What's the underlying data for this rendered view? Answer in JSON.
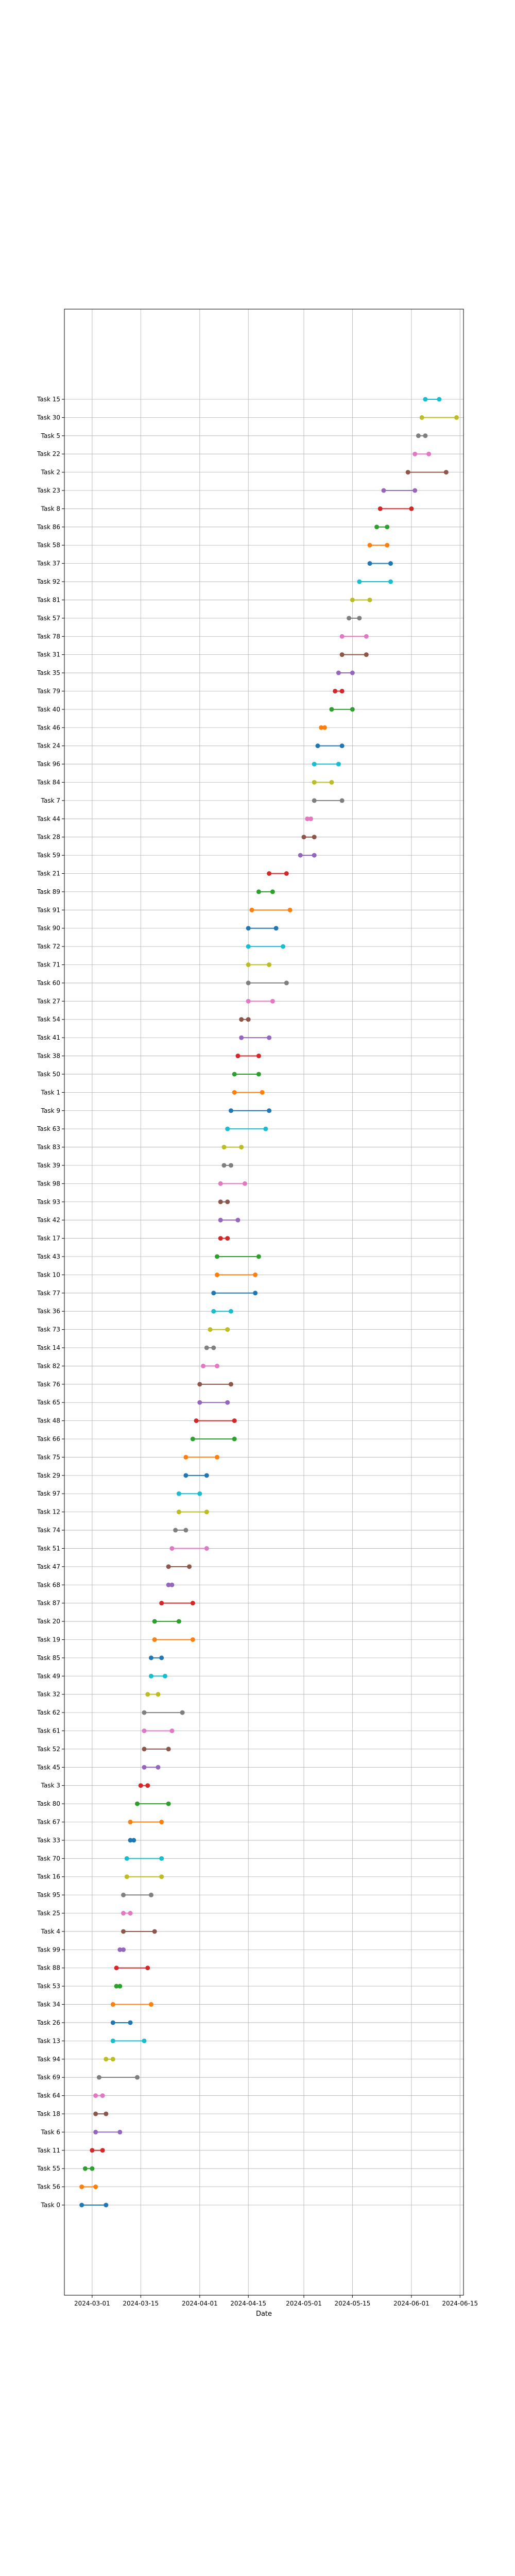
{
  "chart_data": {
    "type": "dumbbell",
    "title": "",
    "xlabel": "Date",
    "ylabel": "",
    "grid": true,
    "x_ticks": [
      "2024-03-01",
      "2024-03-15",
      "2024-04-01",
      "2024-04-15",
      "2024-05-01",
      "2024-05-15",
      "2024-06-01",
      "2024-06-15"
    ],
    "xlim": [
      "2024-02-22",
      "2024-06-16"
    ],
    "series_colors": [
      "#1f77b4",
      "#ff7f0e",
      "#2ca02c",
      "#d62728",
      "#9467bd",
      "#8c564b",
      "#e377c2",
      "#7f7f7f",
      "#bcbd22",
      "#17becf"
    ],
    "tasks": [
      {
        "label": "Task 0",
        "start": "2024-02-27",
        "end": "2024-03-05"
      },
      {
        "label": "Task 56",
        "start": "2024-02-27",
        "end": "2024-03-02"
      },
      {
        "label": "Task 55",
        "start": "2024-02-28",
        "end": "2024-03-01"
      },
      {
        "label": "Task 11",
        "start": "2024-03-01",
        "end": "2024-03-04"
      },
      {
        "label": "Task 6",
        "start": "2024-03-02",
        "end": "2024-03-09"
      },
      {
        "label": "Task 18",
        "start": "2024-03-02",
        "end": "2024-03-05"
      },
      {
        "label": "Task 64",
        "start": "2024-03-02",
        "end": "2024-03-04"
      },
      {
        "label": "Task 69",
        "start": "2024-03-03",
        "end": "2024-03-14"
      },
      {
        "label": "Task 94",
        "start": "2024-03-05",
        "end": "2024-03-07"
      },
      {
        "label": "Task 13",
        "start": "2024-03-07",
        "end": "2024-03-16"
      },
      {
        "label": "Task 26",
        "start": "2024-03-07",
        "end": "2024-03-12"
      },
      {
        "label": "Task 34",
        "start": "2024-03-07",
        "end": "2024-03-18"
      },
      {
        "label": "Task 53",
        "start": "2024-03-08",
        "end": "2024-03-09"
      },
      {
        "label": "Task 88",
        "start": "2024-03-08",
        "end": "2024-03-17"
      },
      {
        "label": "Task 99",
        "start": "2024-03-09",
        "end": "2024-03-10"
      },
      {
        "label": "Task 4",
        "start": "2024-03-10",
        "end": "2024-03-19"
      },
      {
        "label": "Task 25",
        "start": "2024-03-10",
        "end": "2024-03-12"
      },
      {
        "label": "Task 95",
        "start": "2024-03-10",
        "end": "2024-03-18"
      },
      {
        "label": "Task 16",
        "start": "2024-03-11",
        "end": "2024-03-21"
      },
      {
        "label": "Task 70",
        "start": "2024-03-11",
        "end": "2024-03-21"
      },
      {
        "label": "Task 33",
        "start": "2024-03-12",
        "end": "2024-03-13"
      },
      {
        "label": "Task 67",
        "start": "2024-03-12",
        "end": "2024-03-21"
      },
      {
        "label": "Task 80",
        "start": "2024-03-14",
        "end": "2024-03-23"
      },
      {
        "label": "Task 3",
        "start": "2024-03-15",
        "end": "2024-03-17"
      },
      {
        "label": "Task 45",
        "start": "2024-03-16",
        "end": "2024-03-20"
      },
      {
        "label": "Task 52",
        "start": "2024-03-16",
        "end": "2024-03-23"
      },
      {
        "label": "Task 61",
        "start": "2024-03-16",
        "end": "2024-03-24"
      },
      {
        "label": "Task 62",
        "start": "2024-03-16",
        "end": "2024-03-27"
      },
      {
        "label": "Task 32",
        "start": "2024-03-17",
        "end": "2024-03-20"
      },
      {
        "label": "Task 49",
        "start": "2024-03-18",
        "end": "2024-03-22"
      },
      {
        "label": "Task 85",
        "start": "2024-03-18",
        "end": "2024-03-21"
      },
      {
        "label": "Task 19",
        "start": "2024-03-19",
        "end": "2024-03-30"
      },
      {
        "label": "Task 20",
        "start": "2024-03-19",
        "end": "2024-03-26"
      },
      {
        "label": "Task 87",
        "start": "2024-03-21",
        "end": "2024-03-30"
      },
      {
        "label": "Task 68",
        "start": "2024-03-23",
        "end": "2024-03-24"
      },
      {
        "label": "Task 47",
        "start": "2024-03-23",
        "end": "2024-03-29"
      },
      {
        "label": "Task 51",
        "start": "2024-03-24",
        "end": "2024-04-03"
      },
      {
        "label": "Task 74",
        "start": "2024-03-25",
        "end": "2024-03-28"
      },
      {
        "label": "Task 12",
        "start": "2024-03-26",
        "end": "2024-04-03"
      },
      {
        "label": "Task 97",
        "start": "2024-03-26",
        "end": "2024-04-01"
      },
      {
        "label": "Task 29",
        "start": "2024-03-28",
        "end": "2024-04-03"
      },
      {
        "label": "Task 75",
        "start": "2024-03-28",
        "end": "2024-04-06"
      },
      {
        "label": "Task 66",
        "start": "2024-03-30",
        "end": "2024-04-11"
      },
      {
        "label": "Task 48",
        "start": "2024-03-31",
        "end": "2024-04-11"
      },
      {
        "label": "Task 65",
        "start": "2024-04-01",
        "end": "2024-04-09"
      },
      {
        "label": "Task 76",
        "start": "2024-04-01",
        "end": "2024-04-10"
      },
      {
        "label": "Task 82",
        "start": "2024-04-02",
        "end": "2024-04-06"
      },
      {
        "label": "Task 14",
        "start": "2024-04-03",
        "end": "2024-04-05"
      },
      {
        "label": "Task 73",
        "start": "2024-04-04",
        "end": "2024-04-09"
      },
      {
        "label": "Task 36",
        "start": "2024-04-05",
        "end": "2024-04-10"
      },
      {
        "label": "Task 77",
        "start": "2024-04-05",
        "end": "2024-04-17"
      },
      {
        "label": "Task 10",
        "start": "2024-04-06",
        "end": "2024-04-17"
      },
      {
        "label": "Task 43",
        "start": "2024-04-06",
        "end": "2024-04-18"
      },
      {
        "label": "Task 17",
        "start": "2024-04-07",
        "end": "2024-04-09"
      },
      {
        "label": "Task 42",
        "start": "2024-04-07",
        "end": "2024-04-12"
      },
      {
        "label": "Task 93",
        "start": "2024-04-07",
        "end": "2024-04-09"
      },
      {
        "label": "Task 98",
        "start": "2024-04-07",
        "end": "2024-04-14"
      },
      {
        "label": "Task 39",
        "start": "2024-04-08",
        "end": "2024-04-10"
      },
      {
        "label": "Task 83",
        "start": "2024-04-08",
        "end": "2024-04-13"
      },
      {
        "label": "Task 63",
        "start": "2024-04-09",
        "end": "2024-04-20"
      },
      {
        "label": "Task 9",
        "start": "2024-04-10",
        "end": "2024-04-21"
      },
      {
        "label": "Task 1",
        "start": "2024-04-11",
        "end": "2024-04-19"
      },
      {
        "label": "Task 50",
        "start": "2024-04-11",
        "end": "2024-04-18"
      },
      {
        "label": "Task 38",
        "start": "2024-04-12",
        "end": "2024-04-18"
      },
      {
        "label": "Task 41",
        "start": "2024-04-13",
        "end": "2024-04-21"
      },
      {
        "label": "Task 54",
        "start": "2024-04-13",
        "end": "2024-04-15"
      },
      {
        "label": "Task 27",
        "start": "2024-04-15",
        "end": "2024-04-22"
      },
      {
        "label": "Task 60",
        "start": "2024-04-15",
        "end": "2024-04-26"
      },
      {
        "label": "Task 71",
        "start": "2024-04-15",
        "end": "2024-04-21"
      },
      {
        "label": "Task 72",
        "start": "2024-04-15",
        "end": "2024-04-25"
      },
      {
        "label": "Task 90",
        "start": "2024-04-15",
        "end": "2024-04-23"
      },
      {
        "label": "Task 91",
        "start": "2024-04-16",
        "end": "2024-04-27"
      },
      {
        "label": "Task 89",
        "start": "2024-04-18",
        "end": "2024-04-22"
      },
      {
        "label": "Task 21",
        "start": "2024-04-21",
        "end": "2024-04-26"
      },
      {
        "label": "Task 59",
        "start": "2024-04-30",
        "end": "2024-05-04"
      },
      {
        "label": "Task 28",
        "start": "2024-05-01",
        "end": "2024-05-04"
      },
      {
        "label": "Task 44",
        "start": "2024-05-02",
        "end": "2024-05-03"
      },
      {
        "label": "Task 7",
        "start": "2024-05-04",
        "end": "2024-05-12"
      },
      {
        "label": "Task 84",
        "start": "2024-05-04",
        "end": "2024-05-09"
      },
      {
        "label": "Task 96",
        "start": "2024-05-04",
        "end": "2024-05-11"
      },
      {
        "label": "Task 24",
        "start": "2024-05-05",
        "end": "2024-05-12"
      },
      {
        "label": "Task 46",
        "start": "2024-05-06",
        "end": "2024-05-07"
      },
      {
        "label": "Task 40",
        "start": "2024-05-09",
        "end": "2024-05-15"
      },
      {
        "label": "Task 79",
        "start": "2024-05-10",
        "end": "2024-05-12"
      },
      {
        "label": "Task 35",
        "start": "2024-05-11",
        "end": "2024-05-15"
      },
      {
        "label": "Task 31",
        "start": "2024-05-12",
        "end": "2024-05-19"
      },
      {
        "label": "Task 78",
        "start": "2024-05-12",
        "end": "2024-05-19"
      },
      {
        "label": "Task 57",
        "start": "2024-05-14",
        "end": "2024-05-17"
      },
      {
        "label": "Task 81",
        "start": "2024-05-15",
        "end": "2024-05-20"
      },
      {
        "label": "Task 92",
        "start": "2024-05-17",
        "end": "2024-05-26"
      },
      {
        "label": "Task 37",
        "start": "2024-05-20",
        "end": "2024-05-26"
      },
      {
        "label": "Task 58",
        "start": "2024-05-20",
        "end": "2024-05-25"
      },
      {
        "label": "Task 86",
        "start": "2024-05-22",
        "end": "2024-05-25"
      },
      {
        "label": "Task 8",
        "start": "2024-05-23",
        "end": "2024-06-01"
      },
      {
        "label": "Task 23",
        "start": "2024-05-24",
        "end": "2024-06-02"
      },
      {
        "label": "Task 2",
        "start": "2024-05-31",
        "end": "2024-06-11"
      },
      {
        "label": "Task 22",
        "start": "2024-06-02",
        "end": "2024-06-06"
      },
      {
        "label": "Task 5",
        "start": "2024-06-03",
        "end": "2024-06-05"
      },
      {
        "label": "Task 30",
        "start": "2024-06-04",
        "end": "2024-06-14"
      },
      {
        "label": "Task 15",
        "start": "2024-06-05",
        "end": "2024-06-09"
      }
    ]
  }
}
